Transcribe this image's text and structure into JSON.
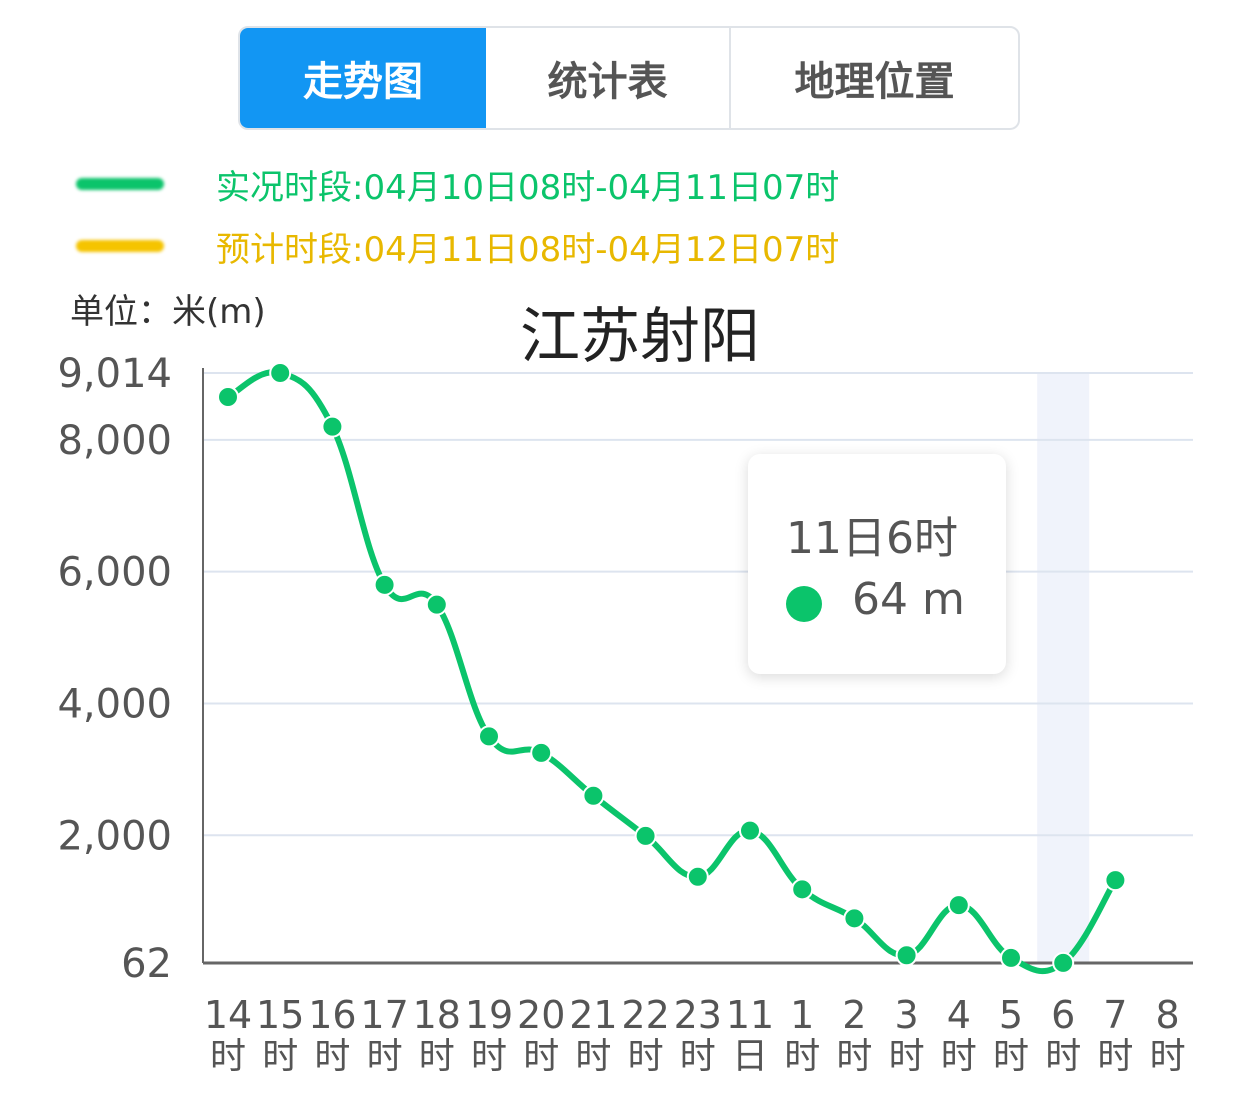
{
  "tabs": [
    {
      "label": "走势图",
      "active": true
    },
    {
      "label": "统计表",
      "active": false
    },
    {
      "label": "地理位置",
      "active": false
    }
  ],
  "legend": [
    {
      "label": "实况时段:04月10日08时-04月11日07时",
      "color": "#0bc46b"
    },
    {
      "label": "预计时段:04月11日08时-04月12日07时",
      "color": "#f5c400"
    }
  ],
  "unit_label": "单位：米(m)",
  "tooltip": {
    "time": "11日6时",
    "value": "64 m",
    "dot_color": "#0bc46b"
  },
  "chart_data": {
    "type": "line",
    "title": "江苏射阳",
    "ylabel": "单位：米(m)",
    "ylim": [
      62,
      9014
    ],
    "yticks": [
      {
        "value": 9014,
        "label": "9,014"
      },
      {
        "value": 8000,
        "label": "8,000"
      },
      {
        "value": 6000,
        "label": "6,000"
      },
      {
        "value": 4000,
        "label": "4,000"
      },
      {
        "value": 2000,
        "label": "2,000"
      },
      {
        "value": 62,
        "label": "62"
      }
    ],
    "categories": [
      [
        "14",
        "时"
      ],
      [
        "15",
        "时"
      ],
      [
        "16",
        "时"
      ],
      [
        "17",
        "时"
      ],
      [
        "18",
        "时"
      ],
      [
        "19",
        "时"
      ],
      [
        "20",
        "时"
      ],
      [
        "21",
        "时"
      ],
      [
        "22",
        "时"
      ],
      [
        "23",
        "时"
      ],
      [
        "11",
        "日"
      ],
      [
        "1",
        "时"
      ],
      [
        "2",
        "时"
      ],
      [
        "3",
        "时"
      ],
      [
        "4",
        "时"
      ],
      [
        "5",
        "时"
      ],
      [
        "6",
        "时"
      ],
      [
        "7",
        "时"
      ],
      [
        "8",
        "时"
      ]
    ],
    "series": [
      {
        "color": "#0bc46b",
        "values": [
          8650,
          9014,
          8200,
          5800,
          5500,
          3500,
          3250,
          2600,
          1990,
          1370,
          2070,
          1180,
          740,
          180,
          940,
          140,
          64,
          1320,
          null
        ]
      }
    ],
    "highlight_category_index": 16,
    "grid": true
  }
}
